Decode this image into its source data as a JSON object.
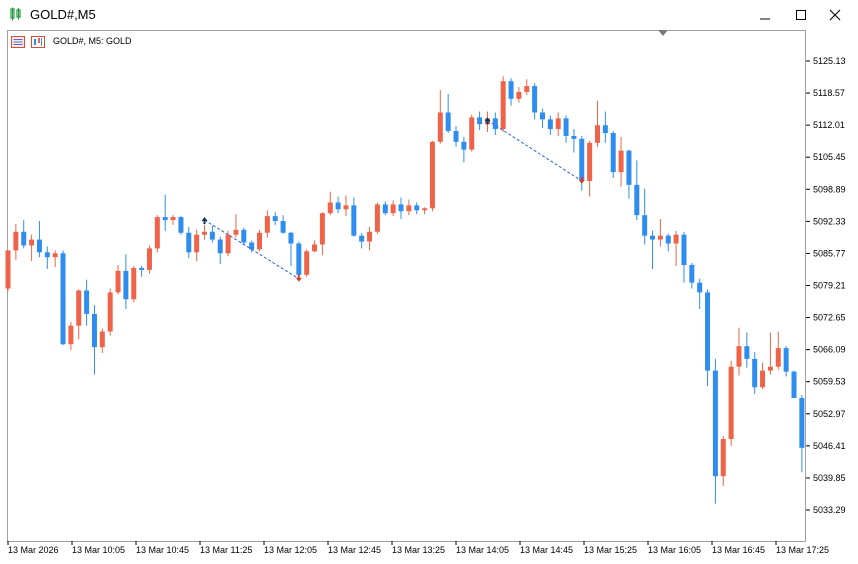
{
  "window": {
    "title": "GOLD#,M5",
    "minimize_icon": "minimize-icon",
    "maximize_icon": "maximize-icon",
    "close_icon": "close-icon"
  },
  "chart_header": {
    "text": "GOLD#, M5:  GOLD"
  },
  "colors": {
    "bull": "#ef6449",
    "bear": "#2f8df0",
    "frame": "#a0a0a0",
    "trade_line": "#2a62d9",
    "sell_arrow": "#d23b2e",
    "buy_arrow": "#15325e"
  },
  "chart_data": {
    "type": "candlestick",
    "symbol": "GOLD#",
    "timeframe": "M5",
    "y_ticks": [
      "5125.13",
      "5118.57",
      "5112.01",
      "5105.45",
      "5098.89",
      "5092.33",
      "5085.77",
      "5079.21",
      "5072.65",
      "5066.09",
      "5059.53",
      "5052.97",
      "5046.41",
      "5039.85",
      "5033.29"
    ],
    "x_ticks": [
      "13 Mar 2026",
      "13 Mar 10:05",
      "13 Mar 10:45",
      "13 Mar 11:25",
      "13 Mar 12:05",
      "13 Mar 12:45",
      "13 Mar 13:25",
      "13 Mar 14:05",
      "13 Mar 14:45",
      "13 Mar 15:25",
      "13 Mar 16:05",
      "13 Mar 16:45",
      "13 Mar 17:25"
    ],
    "ylim": [
      5029.0,
      5131.0
    ],
    "grid": false,
    "candles": [
      [
        5078.6,
        5086.4,
        5078.0,
        5086.4
      ],
      [
        5086.4,
        5091.8,
        5084.4,
        5090.2
      ],
      [
        5090.2,
        5092.6,
        5086.8,
        5087.4
      ],
      [
        5087.4,
        5089.6,
        5084.2,
        5088.6
      ],
      [
        5088.6,
        5092.4,
        5085.0,
        5086.0
      ],
      [
        5086.0,
        5087.2,
        5082.6,
        5085.0
      ],
      [
        5085.0,
        5086.4,
        5083.0,
        5085.8
      ],
      [
        5085.8,
        5086.4,
        5067.0,
        5067.2
      ],
      [
        5067.2,
        5071.8,
        5066.0,
        5071.0
      ],
      [
        5071.0,
        5078.4,
        5068.2,
        5078.2
      ],
      [
        5078.2,
        5080.4,
        5071.0,
        5073.4
      ],
      [
        5073.4,
        5075.2,
        5061.0,
        5066.6
      ],
      [
        5066.6,
        5070.4,
        5065.4,
        5069.8
      ],
      [
        5069.8,
        5078.6,
        5069.0,
        5077.8
      ],
      [
        5077.8,
        5083.4,
        5077.4,
        5082.2
      ],
      [
        5082.2,
        5085.6,
        5074.4,
        5076.4
      ],
      [
        5076.4,
        5083.2,
        5075.8,
        5082.8
      ],
      [
        5082.8,
        5083.2,
        5081.0,
        5082.4
      ],
      [
        5082.4,
        5087.4,
        5081.6,
        5086.8
      ],
      [
        5086.8,
        5093.6,
        5086.0,
        5093.2
      ],
      [
        5093.2,
        5097.8,
        5090.4,
        5092.6
      ],
      [
        5092.6,
        5093.6,
        5091.6,
        5093.2
      ],
      [
        5093.2,
        5093.4,
        5089.6,
        5090.0
      ],
      [
        5090.0,
        5091.2,
        5084.8,
        5086.0
      ],
      [
        5086.0,
        5090.6,
        5084.2,
        5089.6
      ],
      [
        5089.6,
        5091.6,
        5088.6,
        5090.2
      ],
      [
        5090.2,
        5091.4,
        5088.0,
        5088.6
      ],
      [
        5088.6,
        5089.2,
        5083.6,
        5085.8
      ],
      [
        5085.8,
        5090.4,
        5085.2,
        5089.6
      ],
      [
        5089.6,
        5093.8,
        5089.0,
        5090.6
      ],
      [
        5090.6,
        5091.0,
        5087.6,
        5088.0
      ],
      [
        5088.0,
        5088.4,
        5086.0,
        5086.6
      ],
      [
        5086.6,
        5090.6,
        5086.2,
        5090.0
      ],
      [
        5090.0,
        5094.6,
        5089.0,
        5093.4
      ],
      [
        5093.4,
        5094.2,
        5091.6,
        5092.4
      ],
      [
        5092.4,
        5093.6,
        5089.8,
        5090.0
      ],
      [
        5090.0,
        5090.2,
        5083.2,
        5087.8
      ],
      [
        5087.8,
        5088.2,
        5080.6,
        5081.4
      ],
      [
        5081.4,
        5086.6,
        5081.0,
        5086.2
      ],
      [
        5086.2,
        5088.4,
        5086.0,
        5087.6
      ],
      [
        5087.6,
        5094.2,
        5085.4,
        5094.0
      ],
      [
        5094.0,
        5098.4,
        5093.6,
        5096.2
      ],
      [
        5096.2,
        5097.4,
        5094.0,
        5094.8
      ],
      [
        5094.8,
        5097.6,
        5093.4,
        5095.6
      ],
      [
        5095.6,
        5097.2,
        5089.2,
        5089.4
      ],
      [
        5089.4,
        5090.0,
        5086.8,
        5088.2
      ],
      [
        5088.2,
        5091.2,
        5086.4,
        5090.2
      ],
      [
        5090.2,
        5096.2,
        5089.8,
        5095.8
      ],
      [
        5095.8,
        5096.4,
        5093.6,
        5094.0
      ],
      [
        5094.0,
        5096.6,
        5093.4,
        5095.8
      ],
      [
        5095.8,
        5097.2,
        5092.8,
        5094.4
      ],
      [
        5094.4,
        5096.8,
        5093.6,
        5095.6
      ],
      [
        5095.6,
        5096.2,
        5093.8,
        5094.6
      ],
      [
        5094.6,
        5095.2,
        5093.8,
        5095.0
      ],
      [
        5095.0,
        5108.8,
        5094.4,
        5108.6
      ],
      [
        5108.6,
        5119.2,
        5108.2,
        5114.6
      ],
      [
        5114.6,
        5118.4,
        5110.4,
        5110.8
      ],
      [
        5110.8,
        5111.8,
        5107.6,
        5108.6
      ],
      [
        5108.6,
        5109.6,
        5104.4,
        5107.0
      ],
      [
        5107.0,
        5114.2,
        5106.6,
        5113.6
      ],
      [
        5113.6,
        5114.8,
        5111.0,
        5112.2
      ],
      [
        5112.2,
        5114.8,
        5110.6,
        5113.4
      ],
      [
        5113.4,
        5114.6,
        5110.0,
        5111.2
      ],
      [
        5111.2,
        5122.0,
        5110.6,
        5121.0
      ],
      [
        5121.0,
        5121.6,
        5116.0,
        5117.4
      ],
      [
        5117.4,
        5119.8,
        5116.6,
        5118.8
      ],
      [
        5118.8,
        5121.4,
        5118.2,
        5120.0
      ],
      [
        5120.0,
        5120.6,
        5113.2,
        5114.6
      ],
      [
        5114.6,
        5115.4,
        5111.4,
        5113.2
      ],
      [
        5113.2,
        5114.0,
        5110.0,
        5111.2
      ],
      [
        5111.2,
        5114.6,
        5109.8,
        5113.4
      ],
      [
        5113.4,
        5114.0,
        5108.4,
        5109.8
      ],
      [
        5109.8,
        5111.2,
        5106.4,
        5109.2
      ],
      [
        5109.2,
        5109.8,
        5098.6,
        5100.6
      ],
      [
        5100.6,
        5108.8,
        5097.4,
        5108.4
      ],
      [
        5108.4,
        5117.0,
        5107.6,
        5112.0
      ],
      [
        5112.0,
        5114.8,
        5108.4,
        5110.4
      ],
      [
        5110.4,
        5110.8,
        5101.2,
        5102.4
      ],
      [
        5102.4,
        5109.6,
        5099.4,
        5106.8
      ],
      [
        5106.8,
        5107.0,
        5097.0,
        5099.8
      ],
      [
        5099.8,
        5104.8,
        5092.6,
        5093.6
      ],
      [
        5093.6,
        5099.0,
        5087.6,
        5089.4
      ],
      [
        5089.4,
        5090.4,
        5082.6,
        5088.6
      ],
      [
        5088.6,
        5092.8,
        5087.2,
        5089.4
      ],
      [
        5089.4,
        5089.8,
        5086.2,
        5087.8
      ],
      [
        5087.8,
        5090.4,
        5083.2,
        5089.6
      ],
      [
        5089.6,
        5090.2,
        5079.8,
        5083.4
      ],
      [
        5083.4,
        5083.8,
        5078.6,
        5079.8
      ],
      [
        5079.8,
        5080.6,
        5074.4,
        5077.8
      ],
      [
        5077.8,
        5078.4,
        5058.6,
        5061.8
      ],
      [
        5061.8,
        5064.2,
        5034.6,
        5040.2
      ],
      [
        5040.2,
        5048.4,
        5038.2,
        5047.8
      ],
      [
        5047.8,
        5063.8,
        5046.4,
        5062.6
      ],
      [
        5062.6,
        5070.6,
        5060.8,
        5066.8
      ],
      [
        5066.8,
        5069.6,
        5062.4,
        5064.2
      ],
      [
        5064.2,
        5065.6,
        5057.0,
        5058.4
      ],
      [
        5058.4,
        5063.4,
        5058.0,
        5061.8
      ],
      [
        5061.8,
        5069.6,
        5061.0,
        5062.6
      ],
      [
        5062.6,
        5069.8,
        5062.0,
        5066.4
      ],
      [
        5066.4,
        5066.8,
        5060.6,
        5061.6
      ],
      [
        5061.6,
        5061.8,
        5056.8,
        5056.2
      ],
      [
        5056.2,
        5056.8,
        5041.0,
        5046.0
      ]
    ],
    "trades": [
      {
        "type": "buy",
        "open_index": 25,
        "open_price": 5092.6,
        "close_index": 37,
        "close_price": 5080.6
      },
      {
        "type": "buy",
        "open_index": 61,
        "open_price": 5113.0,
        "close_index": 73,
        "close_price": 5100.6
      }
    ]
  }
}
